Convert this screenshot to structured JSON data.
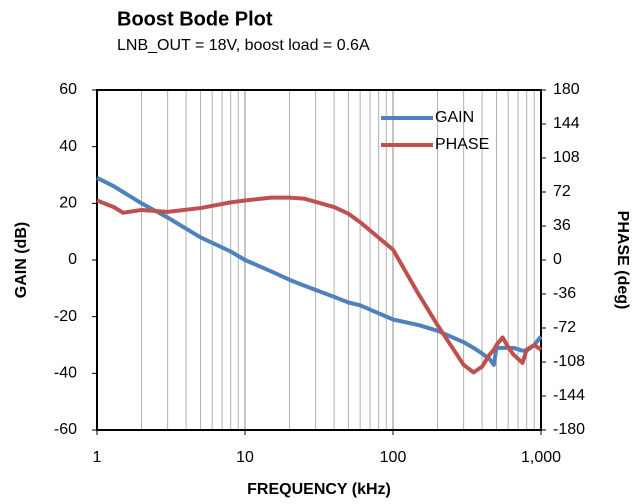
{
  "chart_data": {
    "type": "line",
    "title": "Boost Bode Plot",
    "subtitle": "LNB_OUT = 18V, boost load = 0.6A",
    "x_label": "FREQUENCY  (kHz)",
    "y_label": "GAIN  (dB)",
    "y2_label": "PHASE  (deg)",
    "x_log": true,
    "x": [
      1,
      1.3,
      1.5,
      2,
      3,
      5,
      8,
      10,
      15,
      20,
      25,
      40,
      50,
      60,
      100,
      150,
      200,
      300,
      350,
      400,
      450,
      480,
      500,
      550,
      600,
      650,
      750,
      800,
      900,
      1000
    ],
    "series": [
      {
        "name": "GAIN",
        "color": "#4f81bd",
        "values": [
          29,
          26,
          24,
          20,
          15,
          8,
          3,
          0,
          -4,
          -7,
          -9,
          -13,
          -15,
          -16,
          -21,
          -23,
          -25,
          -29,
          -31,
          -33,
          -35,
          -37,
          -31,
          -31,
          -31,
          -31,
          -32,
          -32,
          -30,
          -27
        ]
      },
      {
        "name": "PHASE",
        "color": "#c0504d",
        "axis": "y2",
        "values": [
          63,
          56,
          50,
          53,
          51,
          55,
          61,
          63,
          66,
          66,
          65,
          56,
          49,
          40,
          11,
          -37,
          -69,
          -111,
          -119,
          -113,
          -100,
          -95,
          -90,
          -82,
          -92,
          -100,
          -109,
          -95,
          -90,
          -95
        ]
      }
    ],
    "xlim": [
      1,
      1000
    ],
    "xticks": [
      1,
      10,
      100,
      {
        "value": 1000,
        "label": "1,000"
      }
    ],
    "ylim": [
      -60,
      60
    ],
    "yticks": [
      -60,
      -40,
      -20,
      0,
      20,
      40,
      60
    ],
    "y2lim": [
      -180,
      180
    ],
    "y2ticks": [
      -180,
      -144,
      -108,
      -72,
      -36,
      0,
      36,
      72,
      108,
      144,
      180
    ],
    "grid": "x",
    "legend": "upper right"
  }
}
